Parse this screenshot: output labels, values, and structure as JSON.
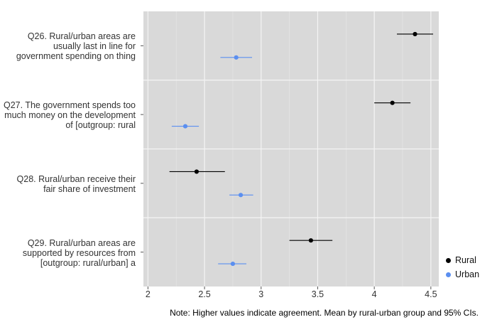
{
  "chart_data": {
    "type": "scatter",
    "xlim": [
      1.96,
      4.57
    ],
    "x_ticks": [
      "2",
      "2.5",
      "3",
      "3.5",
      "4",
      "4.5"
    ],
    "x_tick_values": [
      2,
      2.5,
      3,
      3.5,
      4,
      4.5
    ],
    "grid": true,
    "legend_position": "right",
    "note": "Note: Higher values indicate agreement. Mean by rural-urban group and 95% CIs.",
    "items": [
      {
        "label_lines": [
          "Q26. Rural/urban areas are",
          "usually last in line for",
          "government spending on thing"
        ]
      },
      {
        "label_lines": [
          "Q27. The government spends too",
          "much money on the development",
          "of [outgroup: rural"
        ]
      },
      {
        "label_lines": [
          "Q28. Rural/urban receive their",
          "fair share of investment"
        ]
      },
      {
        "label_lines": [
          "Q29. Rural/urban areas are",
          "supported by resources from",
          "[outgroup: rural/urban] a"
        ]
      }
    ],
    "series": [
      {
        "name": "Rural",
        "color": "#000000",
        "mean": [
          4.36,
          4.16,
          2.43,
          3.44
        ],
        "ci_low": [
          4.2,
          4.0,
          2.19,
          3.25
        ],
        "ci_high": [
          4.52,
          4.32,
          2.68,
          3.63
        ]
      },
      {
        "name": "Urban",
        "color": "#5b8ff0",
        "mean": [
          2.78,
          2.33,
          2.82,
          2.75
        ],
        "ci_low": [
          2.64,
          2.21,
          2.72,
          2.62
        ],
        "ci_high": [
          2.92,
          2.45,
          2.93,
          2.87
        ]
      }
    ]
  }
}
